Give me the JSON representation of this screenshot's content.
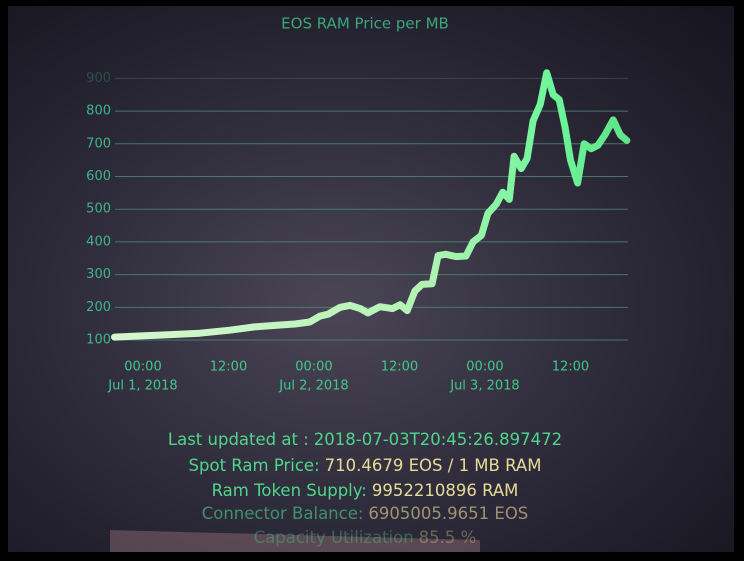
{
  "chart_data": {
    "type": "line",
    "title": "EOS RAM Price per MB",
    "color": "#6ef59a",
    "x": [
      "2018-06-30T20:00",
      "2018-07-01T02:20",
      "2018-07-01T08:00",
      "2018-07-01T12:10",
      "2018-07-01T15:40",
      "2018-07-01T19:15",
      "2018-07-01T21:20",
      "2018-07-01T23:25",
      "2018-07-02T00:50",
      "2018-07-02T02:00",
      "2018-07-02T03:40",
      "2018-07-02T05:05",
      "2018-07-02T06:30",
      "2018-07-02T07:35",
      "2018-07-02T09:15",
      "2018-07-02T11:00",
      "2018-07-02T12:05",
      "2018-07-02T13:05",
      "2018-07-02T14:10",
      "2018-07-02T15:10",
      "2018-07-02T16:35",
      "2018-07-02T17:25",
      "2018-07-02T18:30",
      "2018-07-02T19:55",
      "2018-07-02T21:20",
      "2018-07-02T22:20",
      "2018-07-02T23:30",
      "2018-07-03T00:25",
      "2018-07-03T01:35",
      "2018-07-03T02:30",
      "2018-07-03T03:25",
      "2018-07-03T04:05",
      "2018-07-03T05:05",
      "2018-07-03T05:55",
      "2018-07-03T06:45",
      "2018-07-03T07:45",
      "2018-07-03T08:40",
      "2018-07-03T09:35",
      "2018-07-03T10:25",
      "2018-07-03T11:15",
      "2018-07-03T12:00",
      "2018-07-03T13:00",
      "2018-07-03T13:55",
      "2018-07-03T14:55",
      "2018-07-03T15:50",
      "2018-07-03T16:50",
      "2018-07-03T18:00",
      "2018-07-03T19:00",
      "2018-07-03T19:55"
    ],
    "values": [
      109,
      115,
      121,
      130,
      140,
      146,
      149,
      155,
      173,
      179,
      200,
      206,
      196,
      183,
      202,
      196,
      208,
      190,
      250,
      270,
      272,
      358,
      362,
      355,
      357,
      400,
      420,
      487,
      515,
      552,
      530,
      662,
      624,
      655,
      770,
      820,
      917,
      850,
      835,
      750,
      650,
      580,
      700,
      685,
      695,
      727,
      773,
      727,
      710
    ],
    "xlim": [
      "2018-06-30T20:00",
      "2018-07-03T20:45"
    ],
    "xticks": [
      {
        "value": "2018-07-01T00:00",
        "label": [
          "00:00",
          "Jul 1, 2018"
        ]
      },
      {
        "value": "2018-07-01T12:00",
        "label": [
          "12:00"
        ]
      },
      {
        "value": "2018-07-02T00:00",
        "label": [
          "00:00",
          "Jul 2, 2018"
        ]
      },
      {
        "value": "2018-07-02T12:00",
        "label": [
          "12:00"
        ]
      },
      {
        "value": "2018-07-03T00:00",
        "label": [
          "00:00",
          "Jul 3, 2018"
        ]
      },
      {
        "value": "2018-07-03T12:00",
        "label": [
          "12:00"
        ]
      }
    ],
    "ylim": [
      75,
      950
    ],
    "yticks": [
      100,
      200,
      300,
      400,
      500,
      600,
      700,
      800,
      900
    ],
    "grid": true,
    "stats": [
      {
        "label": "Last updated at :",
        "value": "2018-07-03T20:45:26.897472"
      },
      {
        "label": "Spot Ram Price:",
        "value": "710.4679 EOS / 1 MB RAM"
      },
      {
        "label": "Ram Token Supply:",
        "value": "9952210896 RAM"
      },
      {
        "label": "Connector Balance:",
        "value": "6905005.9651 EOS"
      },
      {
        "label": "Capacity Utilization",
        "value": "85.5 %"
      }
    ]
  }
}
